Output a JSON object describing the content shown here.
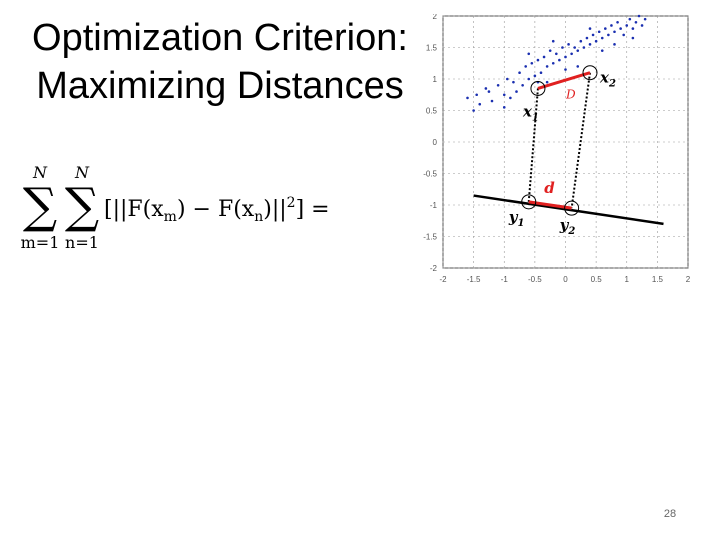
{
  "slide": {
    "title_line1": "Optimization Criterion:",
    "title_line2": "Maximizing Distances",
    "page_number": "28"
  },
  "formula": {
    "sum1_upper": "N",
    "sum1_lower": "m=1",
    "sum2_upper": "N",
    "sum2_lower": "n=1",
    "expression": "[||F(x",
    "sub_m": "m",
    "mid": ") − F(x",
    "sub_n": "n",
    "end": ")||",
    "power": "2",
    "tail": "] ="
  },
  "chart_data": {
    "type": "scatter",
    "x_ticks": [
      "-2",
      "-1.5",
      "-1",
      "-0.5",
      "0",
      "0.5",
      "1",
      "1.5",
      "2"
    ],
    "y_ticks": [
      "2",
      "1.5",
      "1",
      "0.5",
      "0",
      "-0.5",
      "-1",
      "-1.5",
      "-2"
    ],
    "xlim": [
      -2,
      2
    ],
    "ylim": [
      -2,
      2
    ],
    "grid": true,
    "point_color": "#1a2fb0",
    "points": [
      [
        -1.6,
        0.7
      ],
      [
        -1.5,
        0.5
      ],
      [
        -1.45,
        0.75
      ],
      [
        -1.4,
        0.6
      ],
      [
        -1.3,
        0.85
      ],
      [
        -1.2,
        0.65
      ],
      [
        -1.1,
        0.9
      ],
      [
        -1.0,
        0.75
      ],
      [
        -0.95,
        1.0
      ],
      [
        -0.9,
        0.7
      ],
      [
        -0.85,
        0.95
      ],
      [
        -0.8,
        0.8
      ],
      [
        -0.75,
        1.1
      ],
      [
        -0.7,
        0.9
      ],
      [
        -0.65,
        1.2
      ],
      [
        -0.6,
        1.0
      ],
      [
        -0.55,
        1.25
      ],
      [
        -0.5,
        1.05
      ],
      [
        -0.45,
        1.3
      ],
      [
        -0.4,
        1.1
      ],
      [
        -0.35,
        1.35
      ],
      [
        -0.3,
        1.2
      ],
      [
        -0.25,
        1.45
      ],
      [
        -0.2,
        1.25
      ],
      [
        -0.15,
        1.4
      ],
      [
        -0.1,
        1.3
      ],
      [
        -0.05,
        1.5
      ],
      [
        0.0,
        1.35
      ],
      [
        0.05,
        1.55
      ],
      [
        0.1,
        1.4
      ],
      [
        0.15,
        1.5
      ],
      [
        0.2,
        1.45
      ],
      [
        0.25,
        1.6
      ],
      [
        0.3,
        1.5
      ],
      [
        0.35,
        1.65
      ],
      [
        0.4,
        1.55
      ],
      [
        0.45,
        1.7
      ],
      [
        0.5,
        1.6
      ],
      [
        0.55,
        1.75
      ],
      [
        0.6,
        1.65
      ],
      [
        0.65,
        1.8
      ],
      [
        0.7,
        1.7
      ],
      [
        0.75,
        1.85
      ],
      [
        0.8,
        1.75
      ],
      [
        0.85,
        1.9
      ],
      [
        0.9,
        1.8
      ],
      [
        0.95,
        1.7
      ],
      [
        1.0,
        1.85
      ],
      [
        1.05,
        1.95
      ],
      [
        1.1,
        1.8
      ],
      [
        1.15,
        1.9
      ],
      [
        1.2,
        2.0
      ],
      [
        1.25,
        1.85
      ],
      [
        1.3,
        1.95
      ],
      [
        -0.6,
        1.4
      ],
      [
        -0.3,
        0.95
      ],
      [
        0.2,
        1.2
      ],
      [
        0.6,
        1.45
      ],
      [
        -1.0,
        0.55
      ],
      [
        0.4,
        1.8
      ],
      [
        -0.2,
        1.6
      ],
      [
        0.8,
        1.55
      ],
      [
        -1.25,
        0.8
      ],
      [
        0.0,
        1.15
      ],
      [
        1.1,
        1.65
      ],
      [
        -0.45,
        0.95
      ]
    ],
    "annotations": {
      "x1": {
        "x": -0.45,
        "y": 0.85,
        "label_base": "x",
        "label_sub": "1"
      },
      "x2": {
        "x": 0.4,
        "y": 1.1,
        "label_base": "x",
        "label_sub": "2"
      },
      "y1": {
        "x": -0.6,
        "y": -0.95,
        "label_base": "y",
        "label_sub": "1"
      },
      "y2": {
        "x": 0.1,
        "y": -1.05,
        "label_base": "y",
        "label_sub": "2"
      },
      "D_label": "D",
      "d_label": "d",
      "proj_line": {
        "x1": -1.5,
        "y1": -0.85,
        "x2": 1.6,
        "y2": -1.3
      }
    }
  }
}
